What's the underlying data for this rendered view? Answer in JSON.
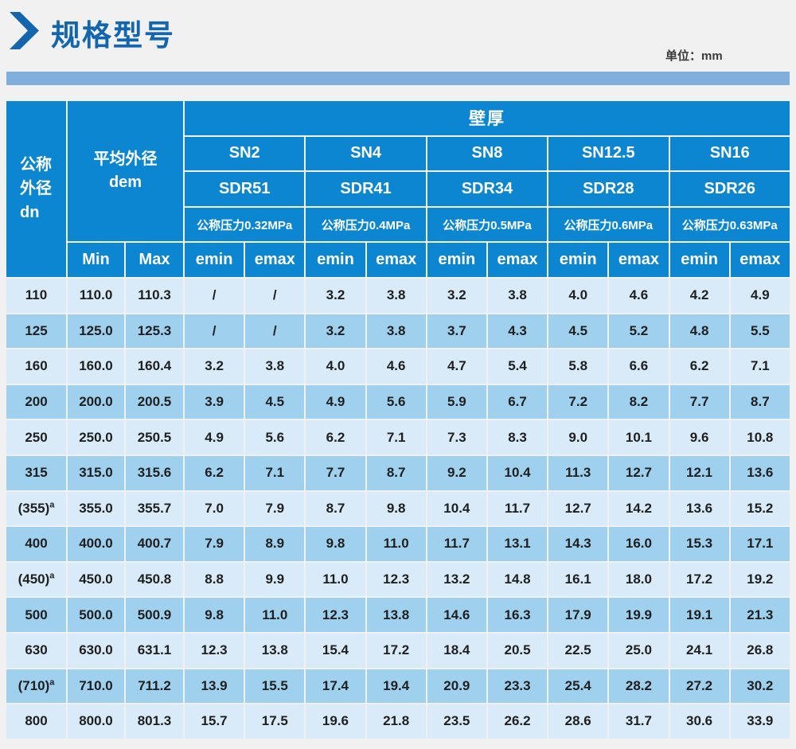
{
  "page": {
    "title": "规格型号",
    "unit_label": "单位：mm"
  },
  "colors": {
    "title-blue": "#1366ad",
    "band-blue": "#7fafda",
    "header-blue": "#0c86d0",
    "row-light": "#d9ebf8",
    "row-dark": "#9fd0ee"
  },
  "icons": {
    "chevron": "right-chevron-icon"
  },
  "table": {
    "header": {
      "dn_line1": "公称",
      "dn_line2": "外径",
      "dn_line3": "dn",
      "dem_line1": "平均外径",
      "dem_line2": "dem",
      "wall_thickness": "壁厚",
      "min": "Min",
      "max": "Max",
      "emin": "emin",
      "emax": "emax",
      "groups": [
        {
          "sn": "SN2",
          "sdr": "SDR51",
          "pressure": "公称压力0.32MPa"
        },
        {
          "sn": "SN4",
          "sdr": "SDR41",
          "pressure": "公称压力0.4MPa"
        },
        {
          "sn": "SN8",
          "sdr": "SDR34",
          "pressure": "公称压力0.5MPa"
        },
        {
          "sn": "SN12.5",
          "sdr": "SDR28",
          "pressure": "公称压力0.6MPa"
        },
        {
          "sn": "SN16",
          "sdr": "SDR26",
          "pressure": "公称压力0.63MPa"
        }
      ]
    },
    "rows": [
      {
        "dn": "110",
        "dn_sup": "",
        "min": "110.0",
        "max": "110.3",
        "values": [
          "/",
          "/",
          "3.2",
          "3.8",
          "3.2",
          "3.8",
          "4.0",
          "4.6",
          "4.2",
          "4.9"
        ]
      },
      {
        "dn": "125",
        "dn_sup": "",
        "min": "125.0",
        "max": "125.3",
        "values": [
          "/",
          "/",
          "3.2",
          "3.8",
          "3.7",
          "4.3",
          "4.5",
          "5.2",
          "4.8",
          "5.5"
        ]
      },
      {
        "dn": "160",
        "dn_sup": "",
        "min": "160.0",
        "max": "160.4",
        "values": [
          "3.2",
          "3.8",
          "4.0",
          "4.6",
          "4.7",
          "5.4",
          "5.8",
          "6.6",
          "6.2",
          "7.1"
        ]
      },
      {
        "dn": "200",
        "dn_sup": "",
        "min": "200.0",
        "max": "200.5",
        "values": [
          "3.9",
          "4.5",
          "4.9",
          "5.6",
          "5.9",
          "6.7",
          "7.2",
          "8.2",
          "7.7",
          "8.7"
        ]
      },
      {
        "dn": "250",
        "dn_sup": "",
        "min": "250.0",
        "max": "250.5",
        "values": [
          "4.9",
          "5.6",
          "6.2",
          "7.1",
          "7.3",
          "8.3",
          "9.0",
          "10.1",
          "9.6",
          "10.8"
        ]
      },
      {
        "dn": "315",
        "dn_sup": "",
        "min": "315.0",
        "max": "315.6",
        "values": [
          "6.2",
          "7.1",
          "7.7",
          "8.7",
          "9.2",
          "10.4",
          "11.3",
          "12.7",
          "12.1",
          "13.6"
        ]
      },
      {
        "dn": "(355)",
        "dn_sup": "a",
        "min": "355.0",
        "max": "355.7",
        "values": [
          "7.0",
          "7.9",
          "8.7",
          "9.8",
          "10.4",
          "11.7",
          "12.7",
          "14.2",
          "13.6",
          "15.2"
        ]
      },
      {
        "dn": "400",
        "dn_sup": "",
        "min": "400.0",
        "max": "400.7",
        "values": [
          "7.9",
          "8.9",
          "9.8",
          "11.0",
          "11.7",
          "13.1",
          "14.3",
          "16.0",
          "15.3",
          "17.1"
        ]
      },
      {
        "dn": "(450)",
        "dn_sup": "a",
        "min": "450.0",
        "max": "450.8",
        "values": [
          "8.8",
          "9.9",
          "11.0",
          "12.3",
          "13.2",
          "14.8",
          "16.1",
          "18.0",
          "17.2",
          "19.2"
        ]
      },
      {
        "dn": "500",
        "dn_sup": "",
        "min": "500.0",
        "max": "500.9",
        "values": [
          "9.8",
          "11.0",
          "12.3",
          "13.8",
          "14.6",
          "16.3",
          "17.9",
          "19.9",
          "19.1",
          "21.3"
        ]
      },
      {
        "dn": "630",
        "dn_sup": "",
        "min": "630.0",
        "max": "631.1",
        "values": [
          "12.3",
          "13.8",
          "15.4",
          "17.2",
          "18.4",
          "20.5",
          "22.5",
          "25.0",
          "24.1",
          "26.8"
        ]
      },
      {
        "dn": "(710)",
        "dn_sup": "a",
        "min": "710.0",
        "max": "711.2",
        "values": [
          "13.9",
          "15.5",
          "17.4",
          "19.4",
          "20.9",
          "23.3",
          "25.4",
          "28.2",
          "27.2",
          "30.2"
        ]
      },
      {
        "dn": "800",
        "dn_sup": "",
        "min": "800.0",
        "max": "801.3",
        "values": [
          "15.7",
          "17.5",
          "19.6",
          "21.8",
          "23.5",
          "26.2",
          "28.6",
          "31.7",
          "30.6",
          "33.9"
        ]
      }
    ]
  }
}
